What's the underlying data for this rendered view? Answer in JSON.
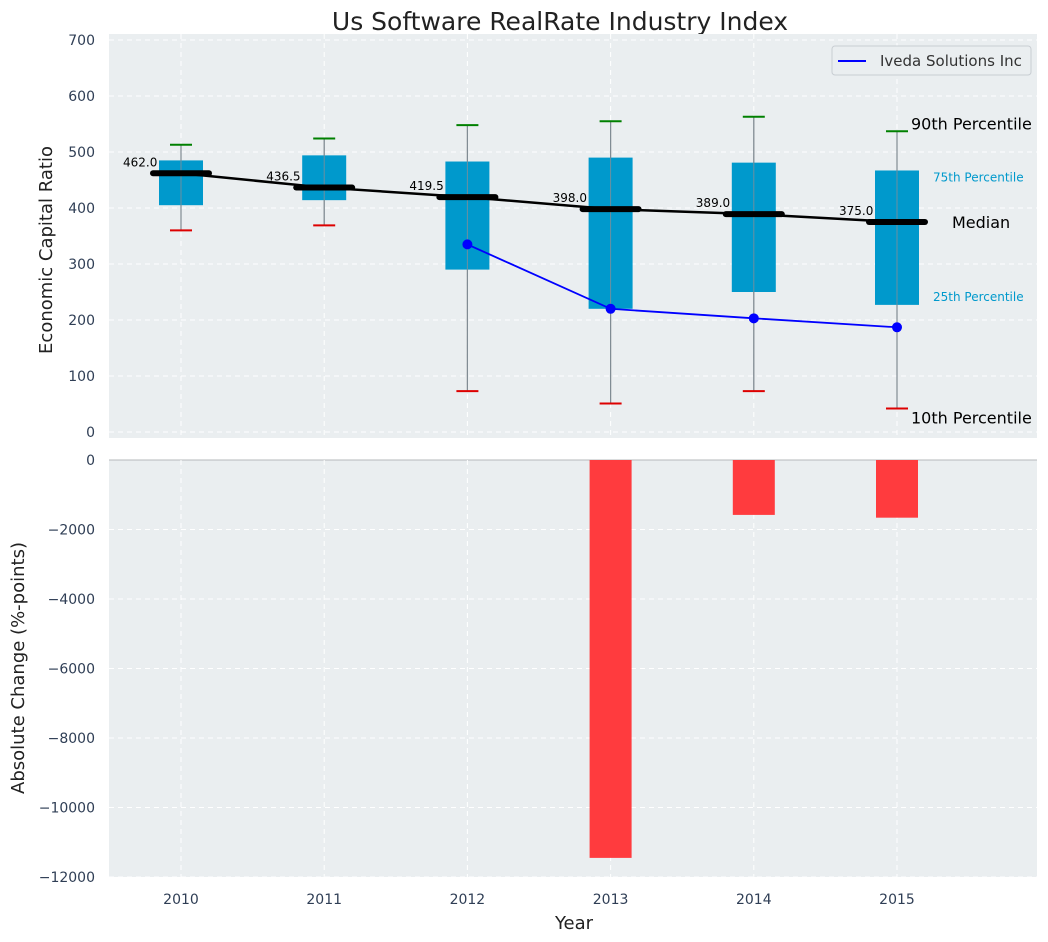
{
  "chart_data": {
    "type": "box-with-bars",
    "title": "Us Software RealRate Industry Index",
    "xlabel": "Year",
    "categories": [
      "2010",
      "2011",
      "2012",
      "2013",
      "2014",
      "2015"
    ],
    "top_panel": {
      "ylabel": "Economic Capital Ratio",
      "ylim": [
        0,
        700
      ],
      "yticks": [
        "0",
        "100",
        "200",
        "300",
        "400",
        "500",
        "600",
        "700"
      ],
      "ytick_values": [
        0,
        100,
        200,
        300,
        400,
        500,
        600,
        700
      ],
      "boxes": [
        {
          "year": "2010",
          "p10": 360,
          "q1": 405,
          "median": 462.0,
          "q3": 485,
          "p90": 513,
          "median_label": "462.0"
        },
        {
          "year": "2011",
          "p10": 369,
          "q1": 414,
          "median": 436.5,
          "q3": 494,
          "p90": 524,
          "median_label": "436.5"
        },
        {
          "year": "2012",
          "p10": 73,
          "q1": 290,
          "median": 419.5,
          "q3": 483,
          "p90": 548,
          "median_label": "419.5"
        },
        {
          "year": "2013",
          "p10": 51,
          "q1": 220,
          "median": 398.0,
          "q3": 490,
          "p90": 555,
          "median_label": "398.0"
        },
        {
          "year": "2014",
          "p10": 73,
          "q1": 250,
          "median": 389.0,
          "q3": 481,
          "p90": 563,
          "median_label": "389.0"
        },
        {
          "year": "2015",
          "p10": 42,
          "q1": 227,
          "median": 375.0,
          "q3": 467,
          "p90": 537,
          "median_label": "375.0"
        }
      ],
      "series": [
        {
          "name": "Iveda Solutions Inc",
          "x": [
            "2012",
            "2013",
            "2014",
            "2015"
          ],
          "values": [
            335,
            220,
            203,
            187
          ],
          "color": "#0000ff"
        }
      ],
      "median_line_color": "#000000",
      "box_color": "#0099cc",
      "p90_color": "#008000",
      "p10_color": "#dd0000",
      "legend_location": "top-right",
      "annotations": {
        "p90": "90th Percentile",
        "p75": "75th Percentile",
        "median": "Median",
        "p25": "25th Percentile",
        "p10": "10th Percentile"
      }
    },
    "bottom_panel": {
      "ylabel": "Absolute Change (%-points)",
      "ylim": [
        -12000,
        0
      ],
      "yticks": [
        "0",
        "−2000",
        "−4000",
        "−6000",
        "−8000",
        "−10000",
        "−12000"
      ],
      "ytick_values": [
        0,
        -2000,
        -4000,
        -6000,
        -8000,
        -10000,
        -12000
      ],
      "bars": [
        {
          "year": "2013",
          "value": -11450
        },
        {
          "year": "2014",
          "value": -1580
        },
        {
          "year": "2015",
          "value": -1660
        }
      ],
      "bar_color": "#ff3b3e"
    },
    "grid": true,
    "background": "#eaeef0",
    "text_color": "#2f3e55"
  }
}
